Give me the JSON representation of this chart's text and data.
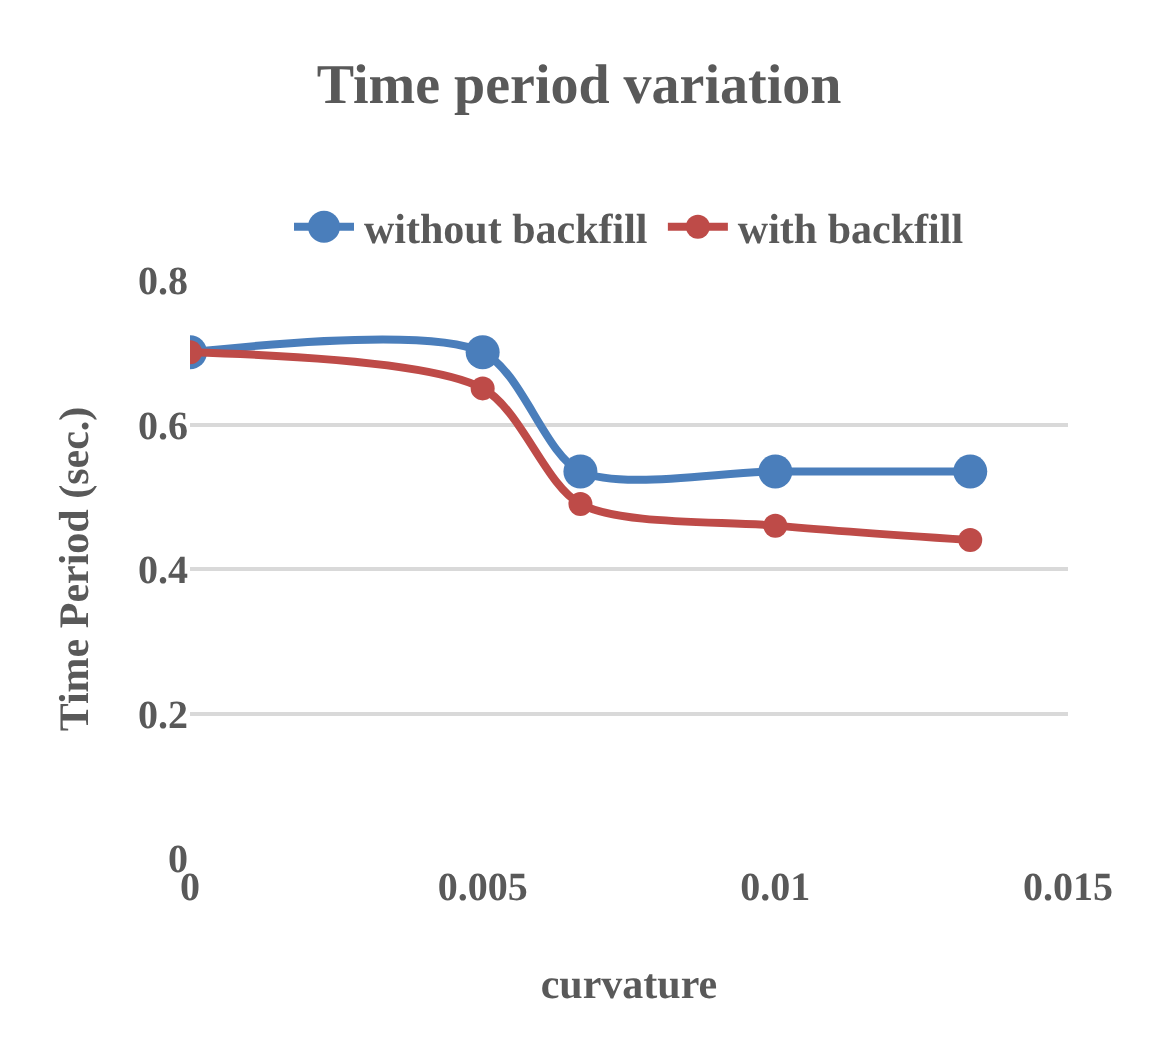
{
  "chart_data": {
    "type": "line",
    "title": "Time period variation",
    "xlabel": "curvature",
    "ylabel": "Time Period (sec.)",
    "x": [
      0,
      0.005,
      0.00667,
      0.01,
      0.01333
    ],
    "series": [
      {
        "name": "without backfill",
        "color": "#4a7ebb",
        "values": [
          0.7,
          0.7,
          0.535,
          0.535,
          0.535
        ]
      },
      {
        "name": "with backfill",
        "color": "#be4b48",
        "values": [
          0.7,
          0.65,
          0.49,
          0.46,
          0.44
        ]
      }
    ],
    "xlim": [
      0,
      0.015
    ],
    "xticks": [
      0,
      0.005,
      0.01,
      0.015
    ],
    "ylim": [
      0,
      0.8
    ],
    "yticks": [
      0,
      0.2,
      0.4,
      0.6,
      0.8
    ],
    "grid": "y",
    "legend": "top",
    "marker": "circle",
    "line_style": "solid"
  }
}
